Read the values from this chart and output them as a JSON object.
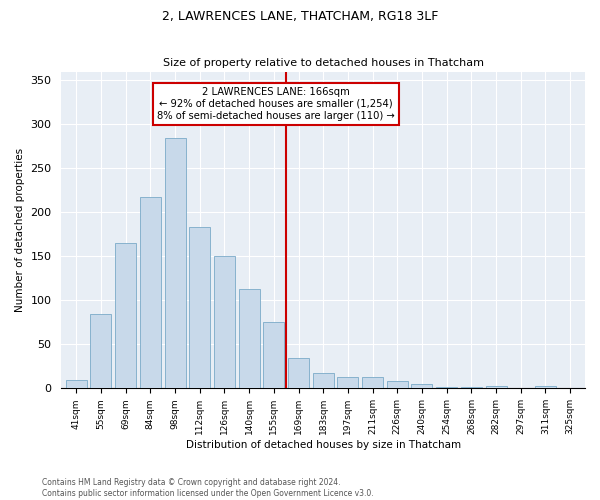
{
  "title": "2, LAWRENCES LANE, THATCHAM, RG18 3LF",
  "subtitle": "Size of property relative to detached houses in Thatcham",
  "xlabel": "Distribution of detached houses by size in Thatcham",
  "ylabel": "Number of detached properties",
  "bar_color": "#c8d9ea",
  "bar_edge_color": "#7aaac8",
  "bg_color": "#e8eef5",
  "vline_color": "#cc0000",
  "vline_x": 9,
  "annotation_title": "2 LAWRENCES LANE: 166sqm",
  "annotation_line1": "← 92% of detached houses are smaller (1,254)",
  "annotation_line2": "8% of semi-detached houses are larger (110) →",
  "footer1": "Contains HM Land Registry data © Crown copyright and database right 2024.",
  "footer2": "Contains public sector information licensed under the Open Government Licence v3.0.",
  "bin_labels": [
    "41sqm",
    "55sqm",
    "69sqm",
    "84sqm",
    "98sqm",
    "112sqm",
    "126sqm",
    "140sqm",
    "155sqm",
    "169sqm",
    "183sqm",
    "197sqm",
    "211sqm",
    "226sqm",
    "240sqm",
    "254sqm",
    "268sqm",
    "282sqm",
    "297sqm",
    "311sqm",
    "325sqm"
  ],
  "heights": [
    10,
    85,
    165,
    218,
    285,
    183,
    150,
    113,
    75,
    35,
    18,
    13,
    13,
    8,
    5,
    1,
    1,
    3,
    0,
    3,
    0
  ],
  "ylim": [
    0,
    360
  ],
  "yticks": [
    0,
    50,
    100,
    150,
    200,
    250,
    300,
    350
  ]
}
